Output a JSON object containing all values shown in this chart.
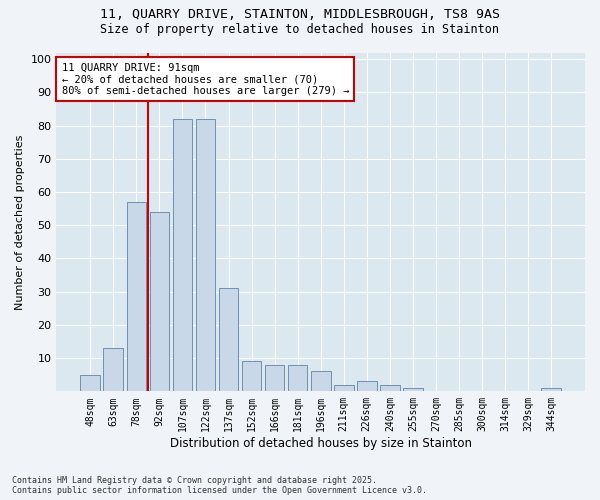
{
  "title1": "11, QUARRY DRIVE, STAINTON, MIDDLESBROUGH, TS8 9AS",
  "title2": "Size of property relative to detached houses in Stainton",
  "xlabel": "Distribution of detached houses by size in Stainton",
  "ylabel": "Number of detached properties",
  "bar_labels": [
    "48sqm",
    "63sqm",
    "78sqm",
    "92sqm",
    "107sqm",
    "122sqm",
    "137sqm",
    "152sqm",
    "166sqm",
    "181sqm",
    "196sqm",
    "211sqm",
    "226sqm",
    "240sqm",
    "255sqm",
    "270sqm",
    "285sqm",
    "300sqm",
    "314sqm",
    "329sqm",
    "344sqm"
  ],
  "bar_values": [
    5,
    13,
    57,
    54,
    82,
    82,
    31,
    9,
    8,
    8,
    6,
    2,
    3,
    2,
    1,
    0,
    0,
    0,
    0,
    0,
    1
  ],
  "bar_color": "#c8d8e8",
  "bar_edge_color": "#7090b0",
  "vline_color": "#cc0000",
  "annotation_text": "11 QUARRY DRIVE: 91sqm\n← 20% of detached houses are smaller (70)\n80% of semi-detached houses are larger (279) →",
  "annotation_box_color": "#ffffff",
  "annotation_box_edge": "#cc0000",
  "plot_bg_color": "#dce8f0",
  "fig_bg_color": "#f0f4f8",
  "grid_color": "#ffffff",
  "footer": "Contains HM Land Registry data © Crown copyright and database right 2025.\nContains public sector information licensed under the Open Government Licence v3.0.",
  "ylim": [
    0,
    102
  ],
  "yticks": [
    0,
    10,
    20,
    30,
    40,
    50,
    60,
    70,
    80,
    90,
    100
  ],
  "vline_index": 2.5
}
